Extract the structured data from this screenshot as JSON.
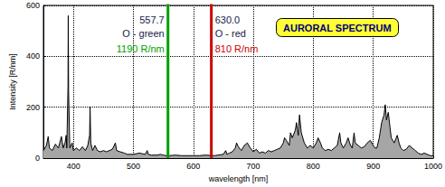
{
  "chart_data": {
    "type": "area",
    "title": "AURORAL SPECTRUM",
    "x_label": "wavelength [nm]",
    "y_label": "Intensity [R/nm]",
    "color": "#a6a6a6",
    "grid": true,
    "xlim": [
      350,
      1000
    ],
    "xticks": [
      400,
      500,
      600,
      700,
      800,
      900,
      1000
    ],
    "ylim": [
      0,
      600
    ],
    "yticks": [
      0,
      200,
      400,
      600
    ],
    "x": [
      350,
      355,
      358,
      360,
      365,
      370,
      375,
      380,
      383,
      386,
      388,
      389,
      391,
      391.4,
      392,
      394,
      398,
      400,
      405,
      410,
      415,
      420,
      424,
      427,
      427.8,
      429,
      432,
      436,
      440,
      445,
      450,
      455,
      460,
      465,
      470,
      472,
      478,
      485,
      490,
      500,
      510,
      520,
      523,
      525,
      530,
      540,
      545,
      550,
      555,
      560,
      570,
      580,
      590,
      600,
      610,
      620,
      636,
      640,
      650,
      654,
      656,
      660,
      665,
      670,
      672,
      675,
      680,
      685,
      690,
      695,
      700,
      705,
      710,
      715,
      720,
      725,
      730,
      735,
      740,
      745,
      750,
      752,
      755,
      760,
      762,
      765,
      770,
      772,
      775,
      777,
      780,
      785,
      790,
      795,
      800,
      805,
      808,
      812,
      815,
      820,
      825,
      830,
      835,
      840,
      844,
      846,
      850,
      855,
      858,
      862,
      865,
      868,
      870,
      875,
      880,
      885,
      890,
      895,
      900,
      903,
      906,
      910,
      914,
      918,
      920,
      922,
      925,
      928,
      930,
      935,
      940,
      943,
      946,
      950,
      955,
      960,
      965,
      970,
      975,
      980,
      985,
      990,
      995,
      1000
    ],
    "values": [
      30,
      50,
      85,
      40,
      30,
      55,
      40,
      85,
      40,
      60,
      90,
      40,
      280,
      560,
      260,
      40,
      60,
      30,
      40,
      30,
      45,
      30,
      50,
      90,
      200,
      60,
      30,
      50,
      30,
      25,
      30,
      25,
      30,
      35,
      60,
      30,
      25,
      20,
      15,
      15,
      20,
      15,
      30,
      15,
      12,
      12,
      15,
      12,
      10,
      10,
      12,
      10,
      10,
      10,
      10,
      12,
      10,
      12,
      15,
      30,
      15,
      20,
      25,
      40,
      60,
      45,
      30,
      50,
      60,
      40,
      25,
      35,
      20,
      25,
      20,
      30,
      25,
      30,
      35,
      40,
      60,
      80,
      70,
      50,
      100,
      80,
      110,
      140,
      90,
      170,
      100,
      60,
      40,
      50,
      40,
      60,
      80,
      60,
      40,
      30,
      35,
      30,
      40,
      50,
      100,
      60,
      40,
      60,
      80,
      50,
      40,
      100,
      60,
      50,
      40,
      45,
      60,
      70,
      50,
      40,
      40,
      80,
      140,
      170,
      210,
      150,
      180,
      120,
      80,
      60,
      90,
      60,
      40,
      30,
      35,
      50,
      40,
      30,
      20,
      15,
      20,
      15,
      10,
      10
    ],
    "emission_lines": [
      {
        "x": 557.7,
        "x_label": "557.7",
        "name": "O - green",
        "value": 1190,
        "value_label": "1190 R/nm",
        "color": "#00a000"
      },
      {
        "x": 630.0,
        "x_label": "630.0",
        "name": "O - red",
        "value": 810,
        "value_label": "810 R/nm",
        "color": "#cc0000"
      }
    ]
  }
}
